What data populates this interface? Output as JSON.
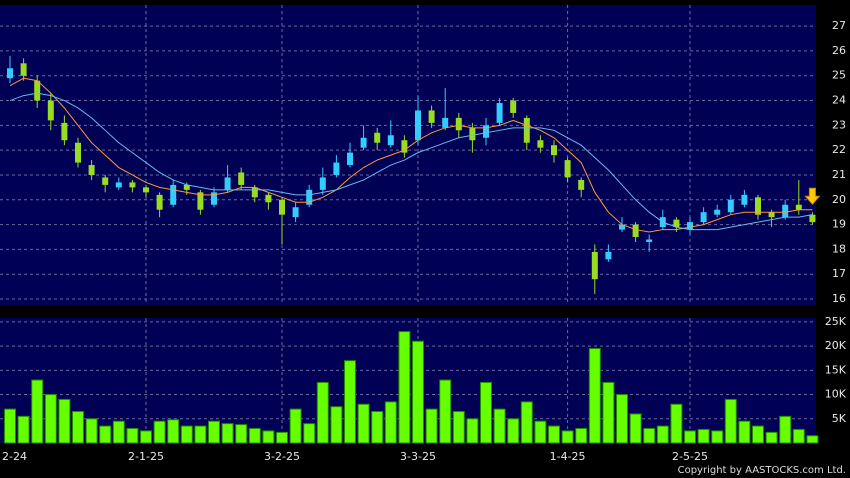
{
  "chart_data": [
    {
      "type": "candlestick",
      "up_color": "#33ccff",
      "down_color": "#99dd22",
      "open": [
        24.9,
        25.5,
        24.8,
        24.0,
        23.1,
        22.3,
        21.4,
        20.9,
        20.5,
        20.7,
        20.5,
        20.2,
        19.8,
        20.6,
        20.3,
        19.8,
        20.4,
        21.1,
        20.5,
        20.2,
        20.0,
        19.3,
        19.8,
        20.4,
        21.0,
        21.4,
        22.1,
        22.7,
        22.2,
        22.4,
        22.4,
        23.6,
        22.9,
        23.3,
        22.9,
        22.5,
        23.1,
        24.0,
        23.3,
        22.4,
        22.2,
        21.6,
        20.8,
        17.9,
        17.6,
        18.8,
        19.0,
        18.3,
        18.9,
        19.2,
        18.8,
        19.1,
        19.4,
        19.5,
        19.8,
        20.1,
        19.5,
        19.3,
        19.8,
        19.4
      ],
      "high": [
        25.8,
        25.7,
        25.0,
        24.3,
        23.4,
        22.5,
        21.6,
        21.0,
        20.9,
        20.8,
        20.6,
        20.3,
        20.8,
        20.7,
        20.4,
        20.5,
        21.4,
        21.3,
        20.6,
        20.3,
        20.1,
        19.9,
        20.6,
        21.3,
        21.8,
        22.3,
        23.0,
        22.9,
        23.2,
        22.6,
        24.2,
        23.8,
        24.5,
        23.5,
        23.1,
        23.3,
        24.1,
        24.1,
        23.4,
        22.6,
        22.4,
        21.7,
        20.9,
        18.2,
        18.2,
        19.3,
        19.1,
        18.6,
        19.6,
        19.3,
        19.3,
        19.7,
        19.8,
        20.2,
        20.4,
        20.2,
        19.6,
        20.0,
        20.8,
        19.5
      ],
      "low": [
        24.7,
        24.8,
        23.7,
        22.8,
        22.2,
        21.3,
        20.8,
        20.3,
        20.4,
        20.3,
        20.1,
        19.3,
        19.7,
        20.2,
        19.4,
        19.7,
        20.3,
        20.4,
        19.9,
        19.6,
        18.2,
        19.1,
        19.7,
        20.2,
        20.9,
        21.3,
        22.0,
        22.0,
        22.1,
        21.7,
        22.2,
        22.9,
        22.8,
        22.5,
        21.9,
        22.2,
        23.0,
        23.3,
        22.0,
        21.9,
        21.5,
        20.7,
        20.1,
        16.2,
        17.5,
        18.7,
        18.3,
        17.9,
        18.8,
        18.7,
        18.6,
        19.0,
        19.3,
        19.4,
        19.7,
        19.2,
        18.9,
        19.2,
        19.4,
        19.0
      ],
      "close": [
        25.3,
        25.0,
        24.0,
        23.2,
        22.4,
        21.5,
        21.0,
        20.6,
        20.7,
        20.5,
        20.3,
        19.6,
        20.6,
        20.4,
        19.6,
        20.3,
        20.9,
        20.6,
        20.1,
        19.9,
        19.4,
        19.7,
        20.4,
        20.9,
        21.5,
        21.9,
        22.5,
        22.3,
        22.6,
        21.9,
        23.6,
        23.1,
        23.3,
        22.8,
        22.4,
        23.0,
        23.9,
        23.5,
        22.3,
        22.1,
        21.8,
        20.9,
        20.4,
        16.8,
        17.9,
        19.0,
        18.5,
        18.4,
        19.3,
        18.9,
        19.1,
        19.5,
        19.6,
        20.0,
        20.2,
        19.4,
        19.3,
        19.8,
        19.6,
        19.1
      ],
      "series": [
        {
          "color": "#ff9933",
          "values": [
            24.6,
            24.9,
            24.8,
            24.3,
            23.7,
            23.0,
            22.3,
            21.8,
            21.3,
            21.0,
            20.7,
            20.5,
            20.4,
            20.3,
            20.2,
            20.2,
            20.3,
            20.5,
            20.5,
            20.3,
            20.1,
            19.9,
            19.9,
            20.1,
            20.4,
            20.9,
            21.3,
            21.6,
            21.8,
            22.0,
            22.4,
            22.7,
            22.9,
            23.0,
            22.9,
            22.9,
            23.0,
            23.2,
            23.0,
            22.8,
            22.5,
            22.0,
            21.5,
            20.3,
            19.5,
            19.0,
            18.8,
            18.7,
            18.8,
            18.8,
            18.9,
            19.0,
            19.2,
            19.4,
            19.5,
            19.5,
            19.5,
            19.5,
            19.6,
            19.6
          ]
        },
        {
          "color": "#66bbee",
          "values": [
            24.0,
            24.2,
            24.3,
            24.2,
            24.0,
            23.7,
            23.3,
            22.8,
            22.3,
            21.9,
            21.5,
            21.1,
            20.8,
            20.6,
            20.5,
            20.4,
            20.4,
            20.4,
            20.4,
            20.4,
            20.3,
            20.2,
            20.2,
            20.3,
            20.4,
            20.6,
            20.8,
            21.1,
            21.4,
            21.6,
            21.9,
            22.1,
            22.3,
            22.5,
            22.6,
            22.7,
            22.8,
            22.9,
            22.9,
            22.9,
            22.8,
            22.5,
            22.2,
            21.7,
            21.2,
            20.6,
            20.0,
            19.5,
            19.1,
            18.9,
            18.8,
            18.8,
            18.8,
            18.9,
            19.0,
            19.1,
            19.2,
            19.3,
            19.3,
            19.4
          ]
        }
      ],
      "ylim": [
        15.76,
        27.85
      ],
      "yticks": [
        16,
        17,
        18,
        19,
        20,
        21,
        22,
        23,
        24,
        25,
        26,
        27
      ],
      "grid": true
    },
    {
      "type": "bar",
      "color": "#66ff00",
      "categories": [
        "2-24",
        null,
        null,
        null,
        null,
        null,
        null,
        null,
        null,
        null,
        "2-1-25",
        null,
        null,
        null,
        null,
        null,
        null,
        null,
        null,
        null,
        "3-2-25",
        null,
        null,
        null,
        null,
        null,
        null,
        null,
        null,
        null,
        "3-3-25",
        null,
        null,
        null,
        null,
        null,
        null,
        null,
        null,
        null,
        null,
        "1-4-25",
        null,
        null,
        null,
        null,
        null,
        null,
        null,
        null,
        "2-5-25",
        null,
        null,
        null,
        null,
        null,
        null,
        null,
        null,
        null
      ],
      "values": [
        7000,
        5500,
        13000,
        10000,
        9000,
        6500,
        5000,
        3500,
        4500,
        3000,
        2500,
        4500,
        4800,
        3500,
        3500,
        4500,
        4000,
        3800,
        3000,
        2500,
        2200,
        7000,
        4000,
        12500,
        7500,
        17000,
        8000,
        6500,
        8500,
        23000,
        21000,
        7000,
        13000,
        6500,
        5000,
        12500,
        7000,
        5000,
        8500,
        4500,
        3500,
        2500,
        3000,
        19500,
        12500,
        10000,
        6000,
        3000,
        3500,
        8000,
        2500,
        2800,
        2500,
        9000,
        4500,
        3500,
        2200,
        5500,
        2800,
        1500
      ],
      "ylim": [
        0,
        25800
      ],
      "yticks": [
        {
          "value": 5000,
          "label": "5K"
        },
        {
          "value": 10000,
          "label": "10K"
        },
        {
          "value": 15000,
          "label": "15K"
        },
        {
          "value": 20000,
          "label": "20K"
        },
        {
          "value": 25000,
          "label": "25K"
        }
      ],
      "grid": true
    }
  ],
  "copyright": "Copyright by AASTOCKS.com Ltd."
}
